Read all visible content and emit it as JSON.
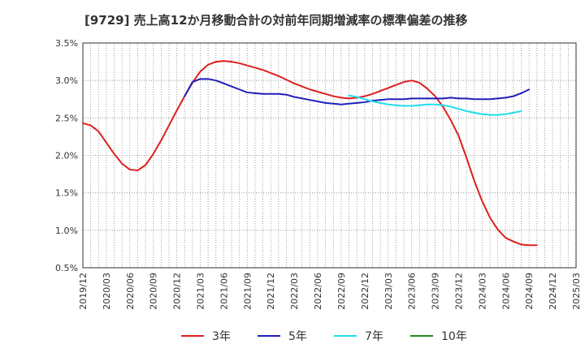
{
  "chart_data": {
    "type": "line",
    "title": "[9729]  売上高12か月移動合計の対前年同期増減率の標準偏差の推移",
    "xlabel": "",
    "ylabel": "",
    "ylim": [
      0.5,
      3.5
    ],
    "yticks": [
      "0.5%",
      "1.0%",
      "1.5%",
      "2.0%",
      "2.5%",
      "3.0%",
      "3.5%"
    ],
    "x_ticks": [
      "2019/12",
      "2020/03",
      "2020/06",
      "2020/09",
      "2020/12",
      "2021/03",
      "2021/06",
      "2021/09",
      "2021/12",
      "2022/03",
      "2022/06",
      "2022/09",
      "2022/12",
      "2023/03",
      "2023/06",
      "2023/09",
      "2023/12",
      "2024/03",
      "2024/06",
      "2024/09",
      "2024/12",
      "2025/03"
    ],
    "grid": true,
    "legend_position": "bottom",
    "series": [
      {
        "name": "3年",
        "color": "#dd1f1f",
        "points": [
          [
            0,
            2.43
          ],
          [
            1,
            2.4
          ],
          [
            2,
            2.32
          ],
          [
            3,
            2.17
          ],
          [
            4,
            2.02
          ],
          [
            5,
            1.89
          ],
          [
            6,
            1.81
          ],
          [
            7,
            1.8
          ],
          [
            8,
            1.87
          ],
          [
            9,
            2.02
          ],
          [
            10,
            2.2
          ],
          [
            11,
            2.4
          ],
          [
            12,
            2.6
          ],
          [
            13,
            2.79
          ],
          [
            14,
            2.97
          ],
          [
            15,
            3.12
          ],
          [
            16,
            3.21
          ],
          [
            17,
            3.25
          ],
          [
            18,
            3.26
          ],
          [
            19,
            3.25
          ],
          [
            20,
            3.23
          ],
          [
            21,
            3.2
          ],
          [
            22,
            3.17
          ],
          [
            23,
            3.14
          ],
          [
            24,
            3.1
          ],
          [
            25,
            3.06
          ],
          [
            26,
            3.01
          ],
          [
            27,
            2.96
          ],
          [
            28,
            2.92
          ],
          [
            29,
            2.88
          ],
          [
            30,
            2.85
          ],
          [
            31,
            2.82
          ],
          [
            32,
            2.79
          ],
          [
            33,
            2.77
          ],
          [
            34,
            2.76
          ],
          [
            35,
            2.77
          ],
          [
            36,
            2.79
          ],
          [
            37,
            2.82
          ],
          [
            38,
            2.86
          ],
          [
            39,
            2.9
          ],
          [
            40,
            2.94
          ],
          [
            41,
            2.98
          ],
          [
            42,
            3.0
          ],
          [
            43,
            2.97
          ],
          [
            44,
            2.89
          ],
          [
            45,
            2.79
          ],
          [
            46,
            2.65
          ],
          [
            47,
            2.47
          ],
          [
            48,
            2.26
          ],
          [
            49,
            1.97
          ],
          [
            50,
            1.66
          ],
          [
            51,
            1.39
          ],
          [
            52,
            1.17
          ],
          [
            53,
            1.01
          ],
          [
            54,
            0.9
          ],
          [
            55,
            0.85
          ],
          [
            56,
            0.81
          ],
          [
            57,
            0.8
          ],
          [
            58,
            0.8
          ]
        ]
      },
      {
        "name": "5年",
        "color": "#1f1fbb",
        "points": [
          [
            13,
            2.79
          ],
          [
            14,
            2.98
          ],
          [
            15,
            3.02
          ],
          [
            16,
            3.02
          ],
          [
            17,
            3.0
          ],
          [
            18,
            2.96
          ],
          [
            19,
            2.92
          ],
          [
            20,
            2.88
          ],
          [
            21,
            2.84
          ],
          [
            22,
            2.83
          ],
          [
            23,
            2.82
          ],
          [
            24,
            2.82
          ],
          [
            25,
            2.82
          ],
          [
            26,
            2.81
          ],
          [
            27,
            2.78
          ],
          [
            28,
            2.76
          ],
          [
            29,
            2.74
          ],
          [
            30,
            2.72
          ],
          [
            31,
            2.7
          ],
          [
            32,
            2.69
          ],
          [
            33,
            2.68
          ],
          [
            34,
            2.69
          ],
          [
            35,
            2.7
          ],
          [
            36,
            2.71
          ],
          [
            37,
            2.73
          ],
          [
            38,
            2.74
          ],
          [
            39,
            2.75
          ],
          [
            40,
            2.75
          ],
          [
            41,
            2.75
          ],
          [
            42,
            2.76
          ],
          [
            43,
            2.76
          ],
          [
            44,
            2.76
          ],
          [
            45,
            2.76
          ],
          [
            46,
            2.76
          ],
          [
            47,
            2.77
          ],
          [
            48,
            2.76
          ],
          [
            49,
            2.76
          ],
          [
            50,
            2.75
          ],
          [
            51,
            2.75
          ],
          [
            52,
            2.75
          ],
          [
            53,
            2.76
          ],
          [
            54,
            2.77
          ],
          [
            55,
            2.79
          ],
          [
            56,
            2.83
          ],
          [
            57,
            2.88
          ]
        ]
      },
      {
        "name": "7年",
        "color": "#22ddee",
        "points": [
          [
            34,
            2.8
          ],
          [
            35,
            2.78
          ],
          [
            36,
            2.75
          ],
          [
            37,
            2.72
          ],
          [
            38,
            2.7
          ],
          [
            39,
            2.68
          ],
          [
            40,
            2.67
          ],
          [
            41,
            2.66
          ],
          [
            42,
            2.66
          ],
          [
            43,
            2.67
          ],
          [
            44,
            2.68
          ],
          [
            45,
            2.68
          ],
          [
            46,
            2.67
          ],
          [
            47,
            2.65
          ],
          [
            48,
            2.62
          ],
          [
            49,
            2.59
          ],
          [
            50,
            2.57
          ],
          [
            51,
            2.55
          ],
          [
            52,
            2.54
          ],
          [
            53,
            2.54
          ],
          [
            54,
            2.55
          ],
          [
            55,
            2.57
          ],
          [
            56,
            2.59
          ]
        ]
      },
      {
        "name": "10年",
        "color": "#228822",
        "points": []
      }
    ]
  }
}
